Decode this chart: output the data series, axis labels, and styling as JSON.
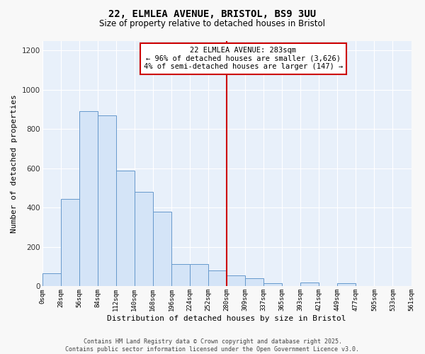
{
  "title": "22, ELMLEA AVENUE, BRISTOL, BS9 3UU",
  "subtitle": "Size of property relative to detached houses in Bristol",
  "xlabel": "Distribution of detached houses by size in Bristol",
  "ylabel": "Number of detached properties",
  "bar_color": "#d4e4f7",
  "bar_edge_color": "#6699cc",
  "plot_bg_color": "#e8f0fa",
  "figure_bg_color": "#f8f8f8",
  "grid_color": "#ffffff",
  "bin_edges": [
    0,
    28,
    56,
    84,
    112,
    140,
    168,
    196,
    224,
    252,
    280,
    308,
    336,
    364,
    392,
    420,
    448,
    476,
    504,
    532,
    560
  ],
  "bin_labels": [
    "0sqm",
    "28sqm",
    "56sqm",
    "84sqm",
    "112sqm",
    "140sqm",
    "168sqm",
    "196sqm",
    "224sqm",
    "252sqm",
    "280sqm",
    "309sqm",
    "337sqm",
    "365sqm",
    "393sqm",
    "421sqm",
    "449sqm",
    "477sqm",
    "505sqm",
    "533sqm",
    "561sqm"
  ],
  "bar_heights": [
    65,
    445,
    890,
    870,
    590,
    480,
    380,
    115,
    115,
    80,
    55,
    40,
    15,
    0,
    20,
    0,
    15,
    0,
    0,
    0
  ],
  "ylim": [
    0,
    1250
  ],
  "yticks": [
    0,
    200,
    400,
    600,
    800,
    1000,
    1200
  ],
  "xlim_max": 560,
  "vline_x": 280,
  "vline_color": "#cc0000",
  "annotation_title": "22 ELMLEA AVENUE: 283sqm",
  "annotation_line2": "← 96% of detached houses are smaller (3,626)",
  "annotation_line3": "4% of semi-detached houses are larger (147) →",
  "footer_line1": "Contains HM Land Registry data © Crown copyright and database right 2025.",
  "footer_line2": "Contains public sector information licensed under the Open Government Licence v3.0."
}
